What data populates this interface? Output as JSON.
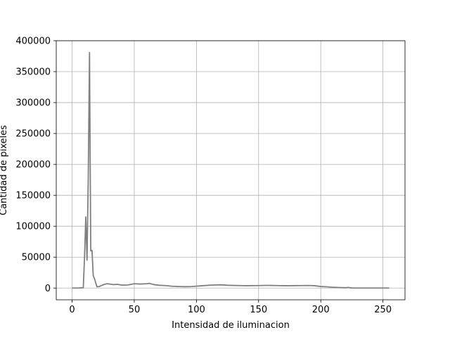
{
  "chart_data": {
    "type": "line",
    "title": "",
    "xlabel": "Intensidad de iluminacion",
    "ylabel": "Cantidad de pixeles",
    "xlim": [
      -12.75,
      267.75
    ],
    "ylim": [
      -19000,
      400000
    ],
    "x_ticks": [
      0,
      50,
      100,
      150,
      200,
      250
    ],
    "y_ticks": [
      0,
      50000,
      100000,
      150000,
      200000,
      250000,
      300000,
      350000,
      400000
    ],
    "grid": true,
    "legend": "none",
    "colors": {
      "line": "#808080",
      "grid": "#b0b0b0",
      "axes": "#000000"
    },
    "series": [
      {
        "x": [
          0,
          5,
          9,
          10,
          11,
          12,
          13,
          14,
          15,
          16,
          17,
          18,
          20,
          22,
          24,
          26,
          28,
          30,
          33,
          36,
          40,
          45,
          50,
          55,
          60,
          62,
          66,
          70,
          75,
          80,
          85,
          90,
          95,
          100,
          105,
          110,
          115,
          120,
          125,
          130,
          135,
          140,
          145,
          150,
          155,
          160,
          165,
          170,
          175,
          180,
          185,
          190,
          195,
          200,
          205,
          210,
          215,
          220,
          222,
          225,
          230,
          235,
          240,
          245,
          250,
          255
        ],
        "values": [
          0,
          0,
          500,
          50000,
          115000,
          45000,
          180000,
          381000,
          60000,
          61000,
          20000,
          15000,
          2000,
          2500,
          4500,
          6000,
          7000,
          6500,
          5500,
          6000,
          4800,
          5000,
          7000,
          6500,
          7000,
          7500,
          5500,
          4500,
          4000,
          3000,
          2500,
          2200,
          2300,
          3000,
          3800,
          4500,
          5000,
          5200,
          4500,
          4200,
          4000,
          3800,
          3900,
          4000,
          4300,
          4200,
          4000,
          3800,
          3800,
          3900,
          4000,
          4100,
          3800,
          2500,
          2000,
          1200,
          800,
          500,
          1000,
          0,
          0,
          0,
          0,
          0,
          0,
          0
        ]
      }
    ]
  }
}
